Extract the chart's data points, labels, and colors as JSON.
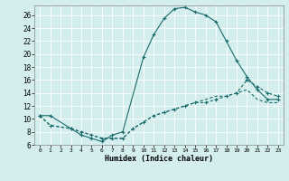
{
  "xlabel": "Humidex (Indice chaleur)",
  "bg_color": "#d4eeee",
  "line_color": "#1a6b6b",
  "xlim": [
    -0.5,
    23.5
  ],
  "ylim": [
    6,
    27.5
  ],
  "xticks": [
    0,
    1,
    2,
    3,
    4,
    5,
    6,
    7,
    8,
    9,
    10,
    11,
    12,
    13,
    14,
    15,
    16,
    17,
    18,
    19,
    20,
    21,
    22,
    23
  ],
  "yticks": [
    6,
    8,
    10,
    12,
    14,
    16,
    18,
    20,
    22,
    24,
    26
  ],
  "line1_x": [
    0,
    1,
    3,
    4,
    5,
    6,
    7,
    8,
    10,
    11,
    12,
    13,
    14,
    15,
    16,
    17,
    18,
    19,
    20,
    21,
    22,
    23
  ],
  "line1_y": [
    10.5,
    10.5,
    8.5,
    7.5,
    7.0,
    6.5,
    7.5,
    8.0,
    19.5,
    23.0,
    25.5,
    27.0,
    27.2,
    26.5,
    26.0,
    25.0,
    22.0,
    19.0,
    16.5,
    14.5,
    13.0,
    13.0
  ],
  "line2_x": [
    0,
    1,
    3,
    4,
    5,
    6,
    7,
    8,
    9,
    10,
    11,
    12,
    13,
    14,
    15,
    16,
    17,
    18,
    19,
    20,
    21,
    22,
    23
  ],
  "line2_y": [
    10.5,
    9.0,
    8.5,
    8.0,
    7.5,
    7.0,
    7.0,
    7.0,
    8.5,
    9.5,
    10.5,
    11.0,
    11.5,
    12.0,
    12.5,
    12.5,
    13.0,
    13.5,
    14.0,
    16.0,
    15.0,
    14.0,
    13.5
  ],
  "line3_x": [
    0,
    1,
    3,
    4,
    5,
    6,
    7,
    8,
    9,
    10,
    11,
    12,
    13,
    14,
    15,
    16,
    17,
    18,
    19,
    20,
    21,
    22,
    23
  ],
  "line3_y": [
    10.5,
    9.0,
    8.5,
    8.0,
    7.5,
    7.0,
    7.0,
    7.0,
    8.5,
    9.5,
    10.5,
    11.0,
    11.5,
    12.0,
    12.5,
    13.0,
    13.5,
    13.5,
    14.0,
    14.5,
    13.0,
    12.5,
    12.5
  ]
}
